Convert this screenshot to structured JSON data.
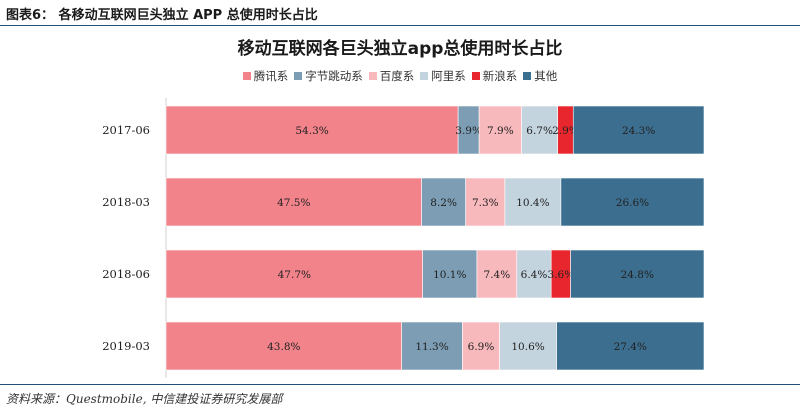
{
  "figure": {
    "label": "图表6：  各移动互联网巨头独立 APP 总使用时长占比",
    "source": "资料来源：Questmobile, 中信建投证券研究发展部"
  },
  "chart_data": {
    "type": "bar",
    "orientation": "horizontal",
    "stacked": true,
    "normalized": true,
    "title": "移动互联网各巨头独立app总使用时长占比",
    "categories": [
      "2017-06",
      "2018-03",
      "2018-06",
      "2019-03"
    ],
    "series": [
      {
        "name": "腾讯系",
        "color": "#f2838a",
        "values": [
          54.3,
          47.5,
          47.7,
          43.8
        ],
        "labels": [
          "54.3%",
          "47.5%",
          "47.7%",
          "43.8%"
        ]
      },
      {
        "name": "字节跳动系",
        "color": "#7c9db3",
        "values": [
          3.9,
          8.2,
          10.1,
          11.3
        ],
        "labels": [
          "3.9%",
          "8.2%",
          "10.1%",
          "11.3%"
        ]
      },
      {
        "name": "百度系",
        "color": "#f8b9bd",
        "values": [
          7.9,
          7.3,
          7.4,
          6.9
        ],
        "labels": [
          "7.9%",
          "7.3%",
          "7.4%",
          "6.9%"
        ]
      },
      {
        "name": "阿里系",
        "color": "#c4d4df",
        "values": [
          6.7,
          10.4,
          6.4,
          10.6
        ],
        "labels": [
          "6.7%",
          "10.4%",
          "6.4%",
          "10.6%"
        ]
      },
      {
        "name": "新浪系",
        "color": "#e8262d",
        "values": [
          2.9,
          0,
          3.6,
          0
        ],
        "labels": [
          "2.9%",
          "",
          "3.6%",
          ""
        ]
      },
      {
        "name": "其他",
        "color": "#3c6e8f",
        "values": [
          24.3,
          26.6,
          24.8,
          27.4
        ],
        "labels": [
          "24.3%",
          "26.6%",
          "24.8%",
          "27.4%"
        ]
      }
    ],
    "legend_position": "top",
    "grid": false
  }
}
